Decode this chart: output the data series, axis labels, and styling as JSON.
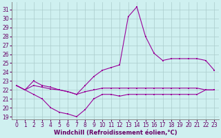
{
  "xlabel": "Windchill (Refroidissement éolien,°C)",
  "x": [
    0,
    1,
    2,
    3,
    4,
    5,
    6,
    7,
    8,
    9,
    10,
    11,
    12,
    13,
    14,
    15,
    16,
    17,
    18,
    19,
    20,
    21,
    22,
    23
  ],
  "curve_top": [
    22.5,
    22.0,
    23.0,
    22.5,
    22.3,
    22.0,
    21.8,
    21.5,
    22.5,
    23.5,
    24.2,
    24.5,
    24.8,
    30.2,
    31.3,
    28.0,
    26.1,
    25.3,
    25.5,
    25.5,
    25.5,
    25.5,
    25.3,
    24.2
  ],
  "curve_mid": [
    22.5,
    22.0,
    22.5,
    22.3,
    22.1,
    22.0,
    21.8,
    21.5,
    21.8,
    22.0,
    22.2,
    22.2,
    22.2,
    22.2,
    22.2,
    22.2,
    22.2,
    22.2,
    22.2,
    22.2,
    22.2,
    22.2,
    22.0,
    22.0
  ],
  "curve_bot": [
    22.5,
    22.0,
    21.5,
    21.0,
    20.0,
    19.5,
    19.3,
    19.0,
    19.8,
    21.0,
    21.5,
    21.5,
    21.3,
    21.5,
    21.5,
    21.5,
    21.5,
    21.5,
    21.5,
    21.5,
    21.5,
    21.5,
    22.0,
    22.0
  ],
  "bg_color": "#cff0f0",
  "line_color": "#990099",
  "grid_color": "#aacccc",
  "ylim_min": 18.7,
  "ylim_max": 31.8,
  "yticks": [
    19,
    20,
    21,
    22,
    23,
    24,
    25,
    26,
    27,
    28,
    29,
    30,
    31
  ],
  "xticks": [
    0,
    1,
    2,
    3,
    4,
    5,
    6,
    7,
    8,
    9,
    10,
    11,
    12,
    13,
    14,
    15,
    16,
    17,
    18,
    19,
    20,
    21,
    22,
    23
  ],
  "xlabel_color": "#660066",
  "tick_color": "#660066",
  "axis_color": "#888888",
  "tick_fontsize": 5.5,
  "xlabel_fontsize": 6.0
}
